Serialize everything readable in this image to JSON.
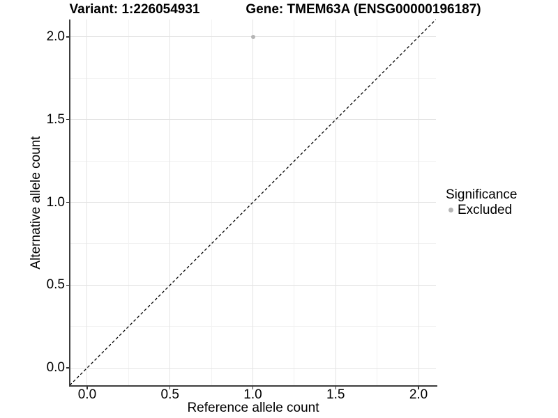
{
  "chart_data": {
    "type": "scatter",
    "title_left": "Variant: 1:226054931",
    "title_right": "Gene: TMEM63A (ENSG00000196187)",
    "xlabel": "Reference allele count",
    "ylabel": "Alternative allele count",
    "xlim": [
      -0.105,
      2.105
    ],
    "ylim": [
      -0.105,
      2.105
    ],
    "x_ticks": [
      {
        "value": 0.0,
        "label": "0.0"
      },
      {
        "value": 0.5,
        "label": "0.5"
      },
      {
        "value": 1.0,
        "label": "1.0"
      },
      {
        "value": 1.5,
        "label": "1.5"
      },
      {
        "value": 2.0,
        "label": "2.0"
      }
    ],
    "y_ticks": [
      {
        "value": 0.0,
        "label": "0.0"
      },
      {
        "value": 0.5,
        "label": "0.5"
      },
      {
        "value": 1.0,
        "label": "1.0"
      },
      {
        "value": 1.5,
        "label": "1.5"
      },
      {
        "value": 2.0,
        "label": "2.0"
      }
    ],
    "minor_grid_positions": [
      0.25,
      0.75,
      1.25,
      1.75
    ],
    "grid": true,
    "points": [
      {
        "x": 1.0,
        "y": 2.0,
        "significance": "Excluded",
        "color": "#b5b5b5"
      }
    ],
    "reference_line": {
      "slope": 1,
      "intercept": 0,
      "style": "dashed",
      "color": "#000000"
    },
    "legend": {
      "title": "Significance",
      "position": "right",
      "entries": [
        {
          "label": "Excluded",
          "color": "#b5b5b5"
        }
      ]
    },
    "style_colors": {
      "grid_major": "#e4e4e4",
      "grid_minor": "#f2f2f2",
      "axis_line": "#3c3c3c",
      "point_gray": "#b5b5b5"
    }
  }
}
